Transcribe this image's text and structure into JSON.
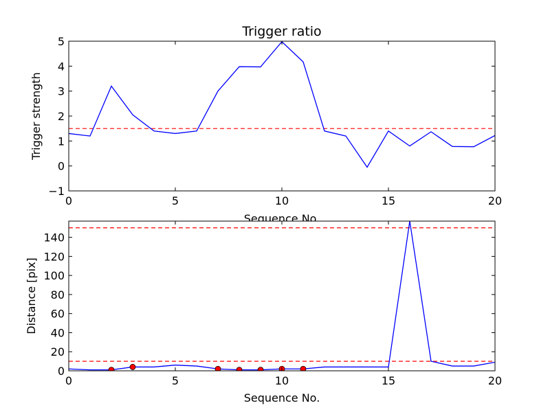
{
  "chart_data": [
    {
      "type": "line",
      "title": "Trigger ratio",
      "xlabel": "Sequence No.",
      "ylabel": "Trigger strength",
      "xlim": [
        0,
        20
      ],
      "ylim": [
        -1,
        5
      ],
      "xticks": [
        0,
        5,
        10,
        15,
        20
      ],
      "yticks": [
        -1,
        0,
        1,
        2,
        3,
        4,
        5
      ],
      "xtick_labels": [
        "0",
        "5",
        "10",
        "15",
        "20"
      ],
      "ytick_labels": [
        "−1",
        "0",
        "1",
        "2",
        "3",
        "4",
        "5"
      ],
      "grid": false,
      "series": [
        {
          "color": "#0000ff",
          "x": [
            0,
            1,
            2,
            3,
            4,
            5,
            6,
            7,
            8,
            9,
            10,
            11,
            12,
            13,
            14,
            15,
            16,
            17,
            18,
            19,
            20
          ],
          "y": [
            1.3,
            1.2,
            3.2,
            2.05,
            1.4,
            1.3,
            1.4,
            3.0,
            3.98,
            3.97,
            4.98,
            4.17,
            1.4,
            1.2,
            -0.05,
            1.4,
            0.8,
            1.37,
            0.78,
            0.77,
            1.22
          ]
        }
      ],
      "hlines": [
        {
          "y": 1.5,
          "color": "#ff0000",
          "style": "dashed"
        }
      ],
      "markers": []
    },
    {
      "type": "line",
      "title": "",
      "xlabel": "Sequence No.",
      "ylabel": "Distance [pix]",
      "xlim": [
        0,
        20
      ],
      "ylim": [
        0,
        157
      ],
      "xticks": [
        0,
        5,
        10,
        15,
        20
      ],
      "yticks": [
        0,
        20,
        40,
        60,
        80,
        100,
        120,
        140
      ],
      "xtick_labels": [
        "0",
        "5",
        "10",
        "15",
        "20"
      ],
      "ytick_labels": [
        "0",
        "20",
        "40",
        "60",
        "80",
        "100",
        "120",
        "140"
      ],
      "grid": false,
      "series": [
        {
          "color": "#0000ff",
          "x": [
            0,
            1,
            2,
            3,
            4,
            5,
            6,
            7,
            8,
            9,
            10,
            11,
            12,
            13,
            14,
            15,
            16,
            17,
            18,
            19,
            20
          ],
          "y": [
            2,
            1,
            1,
            4,
            4,
            6,
            5,
            2,
            1,
            1,
            2,
            2,
            4,
            4,
            4,
            4,
            157,
            10,
            5,
            5,
            9
          ]
        }
      ],
      "hlines": [
        {
          "y": 150,
          "color": "#ff0000",
          "style": "dashed"
        },
        {
          "y": 10,
          "color": "#ff0000",
          "style": "dashed"
        }
      ],
      "markers": [
        {
          "color": "#ff0000",
          "x": [
            2,
            3,
            7,
            8,
            9,
            10,
            11
          ],
          "y": [
            1,
            4,
            2,
            1,
            1,
            2,
            2
          ]
        }
      ]
    }
  ]
}
